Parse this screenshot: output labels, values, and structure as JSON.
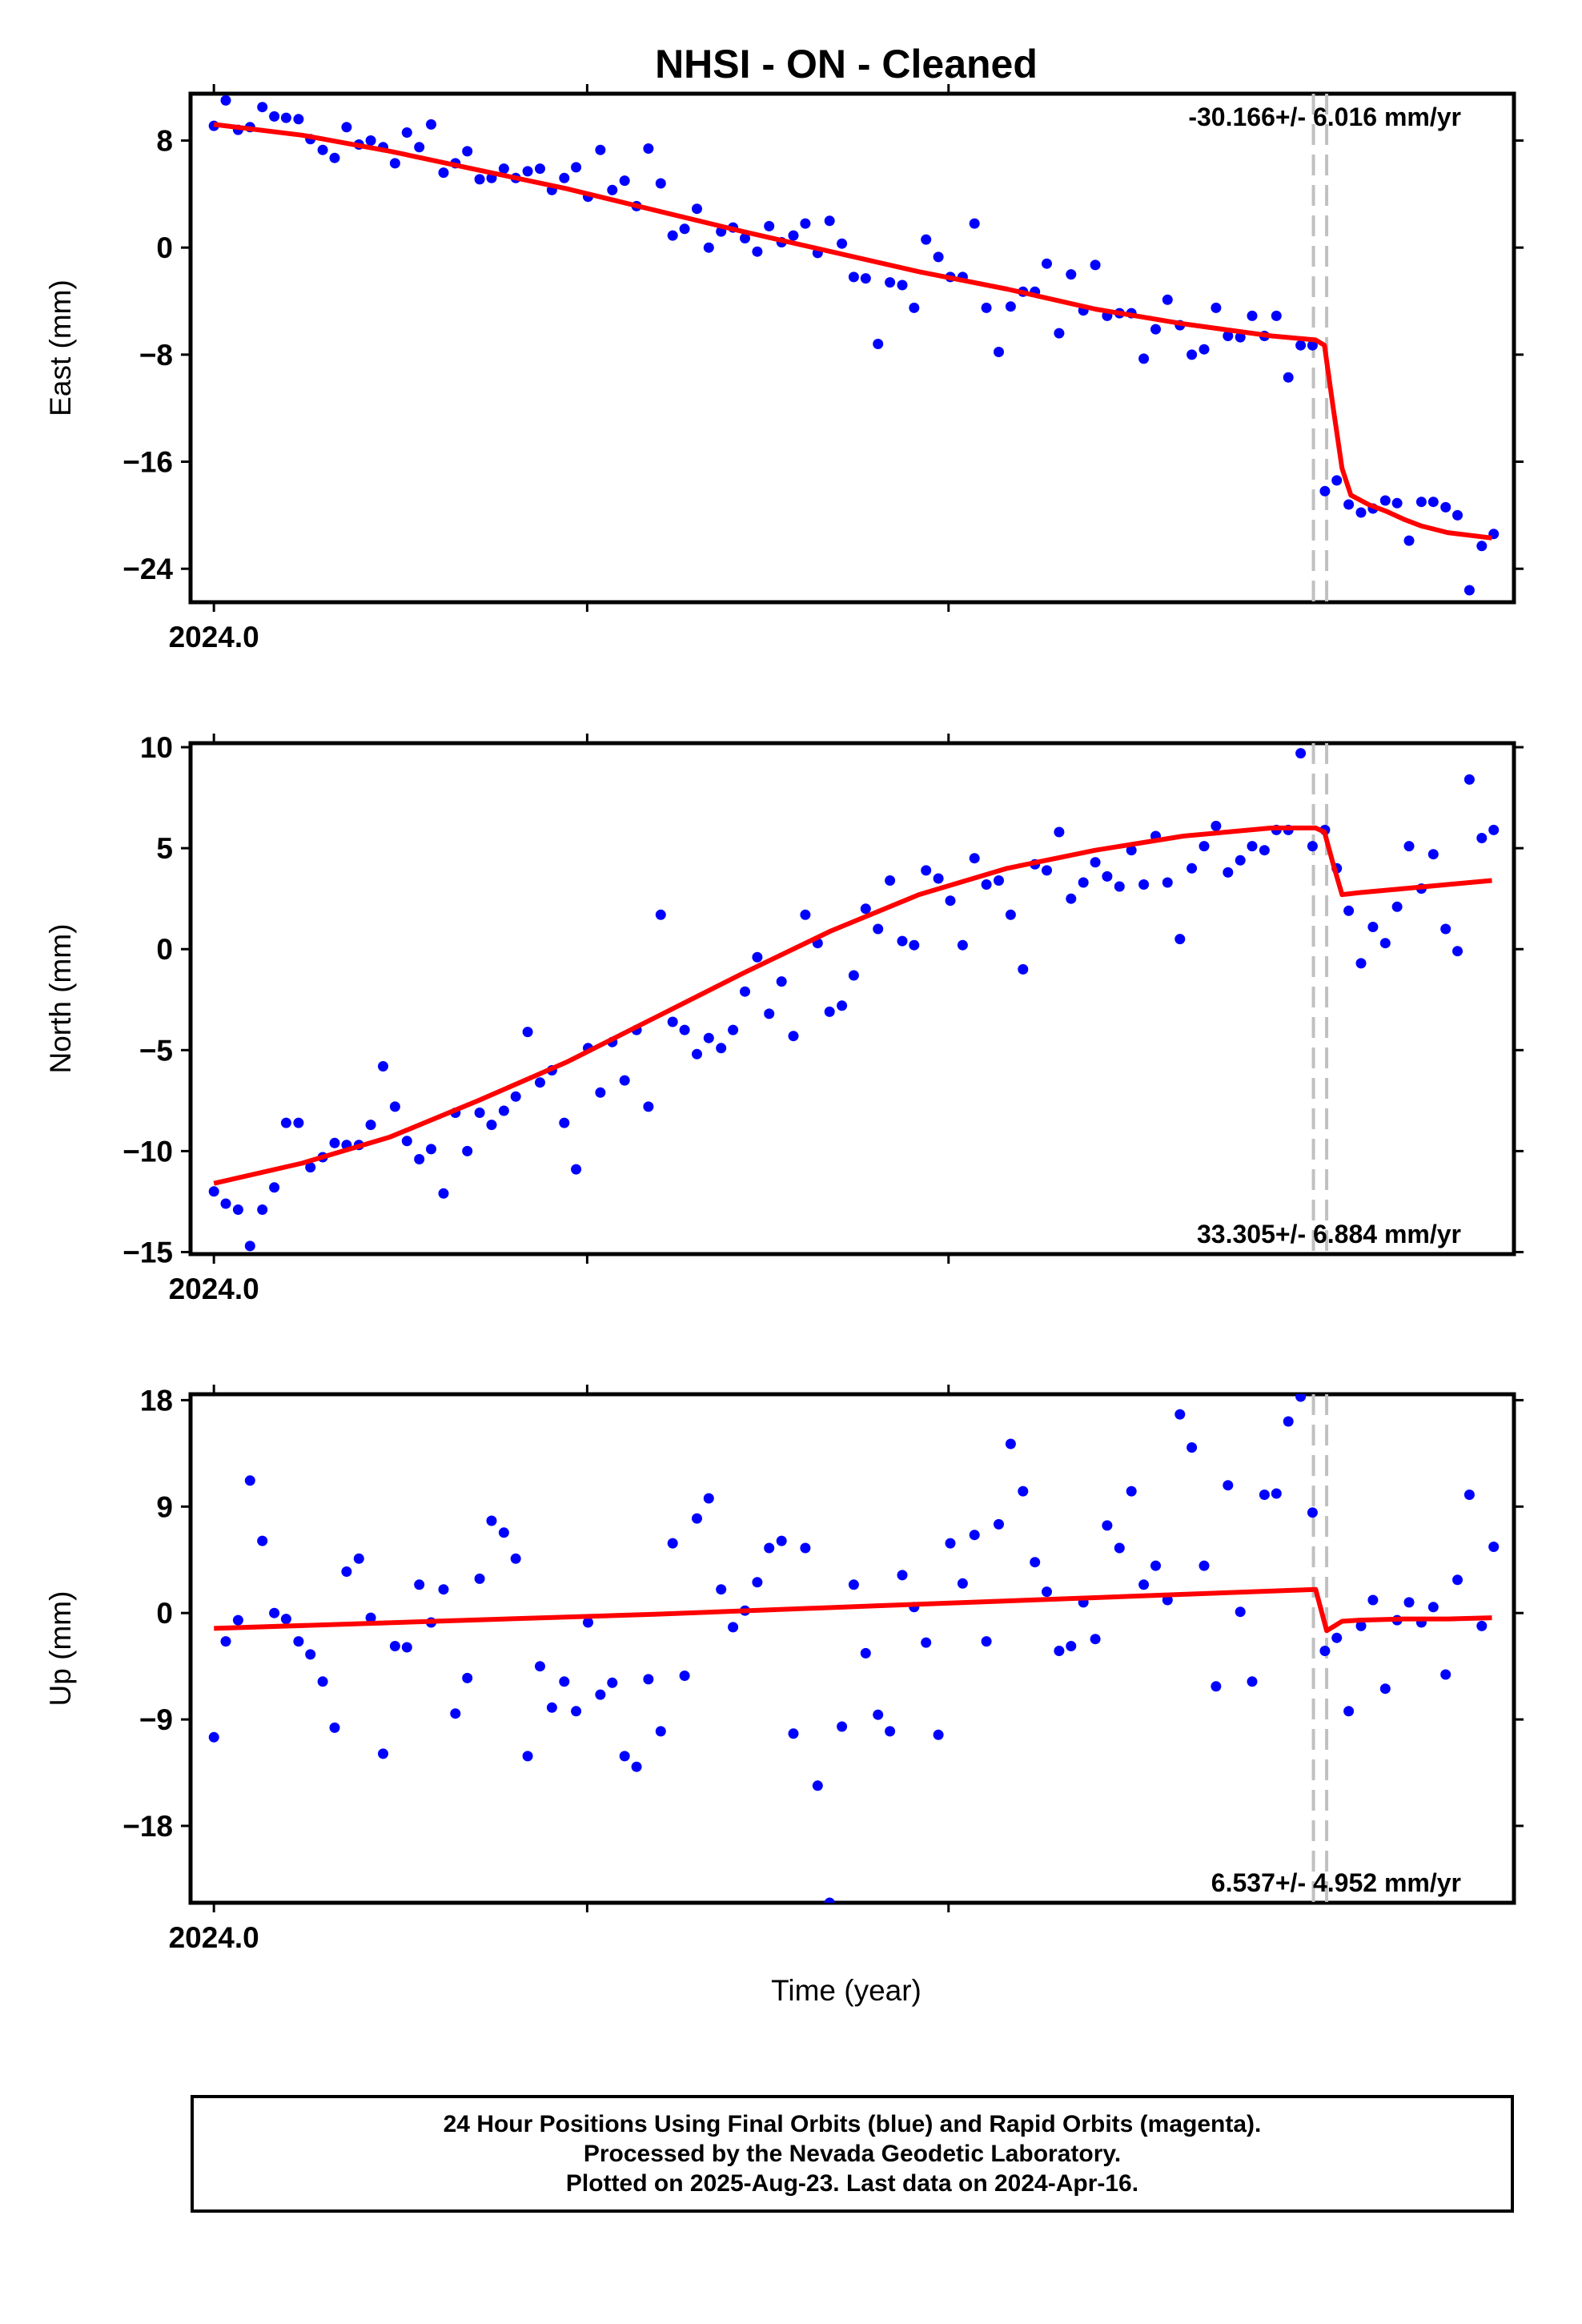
{
  "colors": {
    "data": "#0000ff",
    "fit": "#ff0000",
    "offset_line": "#c0c0c0",
    "axes": "#000000"
  },
  "title": "NHSI  - ON - Cleaned",
  "xlabel": "Time (year)",
  "footer": {
    "line1": "24 Hour Positions Using Final Orbits (blue) and Rapid Orbits (magenta).",
    "line2": "Processed by the Nevada Geodetic Laboratory.",
    "line3": "Plotted on 2025-Aug-23. Last data on 2024-Apr-16."
  },
  "chart_data": [
    {
      "type": "scatter",
      "ylabel": "East (mm)",
      "ylim": [
        -26.5,
        11.5
      ],
      "yticks": [
        8,
        0,
        -8,
        -16,
        -24
      ],
      "xlim": [
        2023.9947,
        2024.295
      ],
      "xtick_label": "2024.0",
      "rate_label": "-30.166+/- 6.016 mm/yr",
      "rate_position": "top-right",
      "offset_epochs": [
        2024.2495,
        2024.2525
      ],
      "series": [
        {
          "kind": "points",
          "x": [
            2024.0,
            2024.0027,
            2024.0055,
            2024.0082,
            2024.011,
            2024.0137,
            2024.0164,
            2024.0192,
            2024.0219,
            2024.0247,
            2024.0274,
            2024.0301,
            2024.0329,
            2024.0356,
            2024.0384,
            2024.0411,
            2024.0438,
            2024.0466,
            2024.0493,
            2024.0521,
            2024.0548,
            2024.0575,
            2024.0603,
            2024.063,
            2024.0658,
            2024.0685,
            2024.0712,
            2024.074,
            2024.0767,
            2024.0795,
            2024.0822,
            2024.0849,
            2024.0877,
            2024.0904,
            2024.0932,
            2024.0959,
            2024.0986,
            2024.1014,
            2024.1041,
            2024.1068,
            2024.1096,
            2024.1123,
            2024.1151,
            2024.1178,
            2024.1205,
            2024.1233,
            2024.126,
            2024.1288,
            2024.1315,
            2024.1342,
            2024.137,
            2024.1397,
            2024.1425,
            2024.1452,
            2024.1479,
            2024.1507,
            2024.1534,
            2024.1562,
            2024.1589,
            2024.1616,
            2024.1644,
            2024.1671,
            2024.1699,
            2024.1726,
            2024.1753,
            2024.1781,
            2024.1808,
            2024.1836,
            2024.1863,
            2024.189,
            2024.1918,
            2024.1945,
            2024.1973,
            2024.2,
            2024.2027,
            2024.2055,
            2024.2082,
            2024.211,
            2024.2137,
            2024.2164,
            2024.2192,
            2024.2219,
            2024.2247,
            2024.2274,
            2024.2301,
            2024.2329,
            2024.2356,
            2024.2384,
            2024.2411,
            2024.2438,
            2024.2466,
            2024.2493,
            2024.2521,
            2024.2548,
            2024.2575,
            2024.2603,
            2024.263,
            2024.2658,
            2024.2685,
            2024.2712,
            2024.274,
            2024.2767,
            2024.2795,
            2024.2822,
            2024.2849,
            2024.2877,
            2024.2904
          ],
          "y": [
            9.1,
            11.0,
            8.8,
            9.0,
            10.5,
            9.8,
            9.7,
            9.6,
            8.1,
            7.3,
            6.7,
            9.0,
            7.7,
            8.0,
            7.5,
            6.3,
            8.6,
            7.5,
            9.2,
            5.6,
            6.3,
            7.2,
            5.1,
            5.2,
            5.9,
            5.2,
            5.7,
            5.9,
            4.3,
            5.2,
            6.0,
            3.8,
            7.3,
            4.3,
            5.0,
            3.1,
            7.4,
            4.8,
            0.9,
            1.4,
            2.9,
            0.0,
            1.2,
            1.5,
            0.7,
            -0.3,
            1.6,
            0.4,
            0.9,
            1.8,
            -0.4,
            2.0,
            0.3,
            -2.2,
            -2.3,
            -7.2,
            -2.6,
            -2.8,
            -4.5,
            0.6,
            -0.7,
            -2.2,
            -2.2,
            1.8,
            -4.5,
            -7.8,
            -4.4,
            -3.3,
            -3.3,
            -1.2,
            -6.4,
            -2.0,
            -4.7,
            -1.3,
            -5.1,
            -4.9,
            -4.9,
            -8.3,
            -6.1,
            -3.9,
            -5.8,
            -8.0,
            -7.6,
            -4.5,
            -6.6,
            -6.7,
            -5.1,
            -6.6,
            -5.1,
            -9.7,
            -7.3,
            -7.3,
            -18.2,
            -17.4,
            -19.2,
            -19.8,
            -19.5,
            -18.9,
            -19.1,
            -21.9,
            -19.0,
            -19.0,
            -19.4,
            -20.0,
            -25.6,
            -22.3,
            -21.4
          ]
        },
        {
          "kind": "fit",
          "x": [
            2024.0,
            2024.02,
            2024.04,
            2024.06,
            2024.08,
            2024.1,
            2024.12,
            2024.14,
            2024.16,
            2024.18,
            2024.2,
            2024.22,
            2024.24,
            2024.25,
            2024.252,
            2024.254,
            2024.256,
            2024.258,
            2024.262,
            2024.266,
            2024.27,
            2024.274,
            2024.28,
            2024.29
          ],
          "y": [
            9.2,
            8.4,
            7.2,
            5.8,
            4.4,
            2.8,
            1.2,
            -0.3,
            -1.8,
            -3.1,
            -4.6,
            -5.7,
            -6.6,
            -6.9,
            -7.3,
            -12.0,
            -16.5,
            -18.5,
            -19.2,
            -19.7,
            -20.3,
            -20.8,
            -21.3,
            -21.7
          ]
        }
      ]
    },
    {
      "type": "scatter",
      "ylabel": "North (mm)",
      "ylim": [
        -15.1,
        10.2
      ],
      "yticks": [
        10,
        5,
        0,
        -5,
        -10,
        -15
      ],
      "xlim": [
        2023.9947,
        2024.295
      ],
      "xtick_label": "2024.0",
      "rate_label": "33.305+/- 6.884 mm/yr",
      "rate_position": "bottom-right",
      "offset_epochs": [
        2024.2495,
        2024.2525
      ],
      "series": [
        {
          "kind": "points",
          "x": [
            2024.0,
            2024.0027,
            2024.0055,
            2024.0082,
            2024.011,
            2024.0137,
            2024.0164,
            2024.0192,
            2024.0219,
            2024.0247,
            2024.0274,
            2024.0301,
            2024.0329,
            2024.0356,
            2024.0384,
            2024.0411,
            2024.0438,
            2024.0466,
            2024.0493,
            2024.0521,
            2024.0548,
            2024.0575,
            2024.0603,
            2024.063,
            2024.0658,
            2024.0685,
            2024.0712,
            2024.074,
            2024.0767,
            2024.0795,
            2024.0822,
            2024.0849,
            2024.0877,
            2024.0904,
            2024.0932,
            2024.0959,
            2024.0986,
            2024.1014,
            2024.1041,
            2024.1068,
            2024.1096,
            2024.1123,
            2024.1151,
            2024.1178,
            2024.1205,
            2024.1233,
            2024.126,
            2024.1288,
            2024.1315,
            2024.1342,
            2024.137,
            2024.1397,
            2024.1425,
            2024.1452,
            2024.1479,
            2024.1507,
            2024.1534,
            2024.1562,
            2024.1589,
            2024.1616,
            2024.1644,
            2024.1671,
            2024.1699,
            2024.1726,
            2024.1753,
            2024.1781,
            2024.1808,
            2024.1836,
            2024.1863,
            2024.189,
            2024.1918,
            2024.1945,
            2024.1973,
            2024.2,
            2024.2027,
            2024.2055,
            2024.2082,
            2024.211,
            2024.2137,
            2024.2164,
            2024.2192,
            2024.2219,
            2024.2247,
            2024.2274,
            2024.2301,
            2024.2329,
            2024.2356,
            2024.2384,
            2024.2411,
            2024.2438,
            2024.2466,
            2024.2493,
            2024.2521,
            2024.2548,
            2024.2575,
            2024.2603,
            2024.263,
            2024.2658,
            2024.2685,
            2024.2712,
            2024.274,
            2024.2767,
            2024.2795,
            2024.2822,
            2024.2849,
            2024.2877,
            2024.2904
          ],
          "y": [
            -12.0,
            -12.6,
            -12.9,
            -14.7,
            -12.9,
            -11.8,
            -8.6,
            -8.6,
            -10.8,
            -10.3,
            -9.6,
            -9.7,
            -9.7,
            -8.7,
            -5.8,
            -7.8,
            -9.5,
            -10.4,
            -9.9,
            -12.1,
            -8.1,
            -10.0,
            -8.1,
            -8.7,
            -8.0,
            -7.3,
            -4.1,
            -6.6,
            -6.0,
            -8.6,
            -10.9,
            -4.9,
            -7.1,
            -4.6,
            -6.5,
            -4.0,
            -7.8,
            1.7,
            -3.6,
            -4.0,
            -5.2,
            -4.4,
            -4.9,
            -4.0,
            -2.1,
            -0.4,
            -3.2,
            -1.6,
            -4.3,
            1.7,
            0.3,
            -3.1,
            -2.8,
            -1.3,
            2.0,
            1.0,
            3.4,
            0.4,
            0.2,
            3.9,
            3.5,
            2.4,
            0.2,
            4.5,
            3.2,
            3.4,
            1.7,
            -1.0,
            4.2,
            3.9,
            5.8,
            2.5,
            3.3,
            4.3,
            3.6,
            3.1,
            4.9,
            3.2,
            5.6,
            3.3,
            0.5,
            4.0,
            5.1,
            6.1,
            3.8,
            4.4,
            5.1,
            4.9,
            5.9,
            5.9,
            9.7,
            5.1,
            5.9,
            4.0,
            1.9,
            -0.7,
            1.1,
            0.3,
            2.1,
            5.1,
            3.0,
            4.7,
            1.0,
            -0.1,
            8.4,
            5.5,
            5.9
          ]
        },
        {
          "kind": "fit",
          "x": [
            2024.0,
            2024.02,
            2024.04,
            2024.06,
            2024.08,
            2024.1,
            2024.12,
            2024.14,
            2024.16,
            2024.18,
            2024.2,
            2024.22,
            2024.24,
            2024.25,
            2024.252,
            2024.254,
            2024.256,
            2024.26,
            2024.27,
            2024.28,
            2024.29
          ],
          "y": [
            -11.6,
            -10.6,
            -9.3,
            -7.5,
            -5.6,
            -3.4,
            -1.2,
            0.9,
            2.7,
            4.0,
            4.9,
            5.6,
            6.0,
            6.0,
            5.8,
            4.2,
            2.7,
            2.8,
            3.0,
            3.2,
            3.4
          ]
        }
      ]
    },
    {
      "type": "scatter",
      "ylabel": "Up (mm)",
      "ylim": [
        -24.5,
        18.5
      ],
      "yticks": [
        18,
        9,
        0,
        -9,
        -18
      ],
      "xlim": [
        2023.9947,
        2024.295
      ],
      "xtick_label": "2024.0",
      "rate_label": "6.537+/- 4.952 mm/yr",
      "rate_position": "bottom-right",
      "offset_epochs": [
        2024.2495,
        2024.2525
      ],
      "series": [
        {
          "kind": "points",
          "x": [
            2024.0,
            2024.0027,
            2024.0055,
            2024.0082,
            2024.011,
            2024.0137,
            2024.0164,
            2024.0192,
            2024.0219,
            2024.0247,
            2024.0274,
            2024.0301,
            2024.0329,
            2024.0356,
            2024.0384,
            2024.0411,
            2024.0438,
            2024.0466,
            2024.0493,
            2024.0521,
            2024.0548,
            2024.0575,
            2024.0603,
            2024.063,
            2024.0658,
            2024.0685,
            2024.0712,
            2024.074,
            2024.0767,
            2024.0795,
            2024.0822,
            2024.0849,
            2024.0877,
            2024.0904,
            2024.0932,
            2024.0959,
            2024.0986,
            2024.1014,
            2024.1041,
            2024.1068,
            2024.1096,
            2024.1123,
            2024.1151,
            2024.1178,
            2024.1205,
            2024.1233,
            2024.126,
            2024.1288,
            2024.1315,
            2024.1342,
            2024.137,
            2024.1397,
            2024.1425,
            2024.1452,
            2024.1479,
            2024.1507,
            2024.1534,
            2024.1562,
            2024.1589,
            2024.1616,
            2024.1644,
            2024.1671,
            2024.1699,
            2024.1726,
            2024.1753,
            2024.1781,
            2024.1808,
            2024.1836,
            2024.1863,
            2024.189,
            2024.1918,
            2024.1945,
            2024.1973,
            2024.2,
            2024.2027,
            2024.2055,
            2024.2082,
            2024.211,
            2024.2137,
            2024.2164,
            2024.2192,
            2024.2219,
            2024.2247,
            2024.2274,
            2024.2301,
            2024.2329,
            2024.2356,
            2024.2384,
            2024.2411,
            2024.2438,
            2024.2466,
            2024.2493,
            2024.2521,
            2024.2548,
            2024.2575,
            2024.2603,
            2024.263,
            2024.2658,
            2024.2685,
            2024.2712,
            2024.274,
            2024.2767,
            2024.2795,
            2024.2822,
            2024.2849,
            2024.2877,
            2024.2904
          ],
          "y": [
            -10.5,
            -2.4,
            -0.6,
            11.2,
            6.1,
            0.0,
            -0.5,
            -2.4,
            -3.5,
            -5.8,
            -9.7,
            3.5,
            4.6,
            -0.4,
            -11.9,
            -2.8,
            -2.9,
            2.4,
            -0.8,
            2.0,
            -8.5,
            -5.5,
            2.9,
            7.8,
            6.8,
            4.6,
            -12.1,
            -4.5,
            -8.0,
            -5.8,
            -8.3,
            -0.8,
            -6.9,
            -5.9,
            -12.1,
            -13.0,
            -5.6,
            -10.0,
            5.9,
            -5.3,
            8.0,
            9.7,
            2.0,
            -1.2,
            0.2,
            2.6,
            5.5,
            6.1,
            -10.2,
            5.5,
            -14.6,
            -24.5,
            -9.6,
            2.4,
            -3.4,
            -8.6,
            -10.0,
            3.2,
            0.5,
            -2.5,
            -10.3,
            5.9,
            2.5,
            6.6,
            -2.4,
            7.5,
            14.3,
            10.3,
            4.3,
            1.8,
            -3.2,
            -2.8,
            0.9,
            -2.2,
            7.4,
            5.5,
            10.3,
            2.4,
            4.0,
            1.1,
            16.8,
            14.0,
            4.0,
            -6.2,
            10.8,
            0.1,
            -5.8,
            10.0,
            10.1,
            16.2,
            18.3,
            8.5,
            -3.2,
            -2.1,
            -8.3,
            -1.1,
            1.1,
            -6.4,
            -0.6,
            0.9,
            -0.8,
            0.5,
            -5.2,
            2.8,
            10.0,
            -1.1,
            5.6
          ]
        },
        {
          "kind": "fit",
          "x": [
            2024.0,
            2024.05,
            2024.1,
            2024.15,
            2024.2,
            2024.25,
            2024.2525,
            2024.256,
            2024.26,
            2024.27,
            2024.28,
            2024.29
          ],
          "y": [
            -1.3,
            -0.7,
            -0.1,
            0.6,
            1.3,
            2.0,
            -1.5,
            -0.7,
            -0.6,
            -0.5,
            -0.5,
            -0.4
          ]
        }
      ]
    }
  ]
}
